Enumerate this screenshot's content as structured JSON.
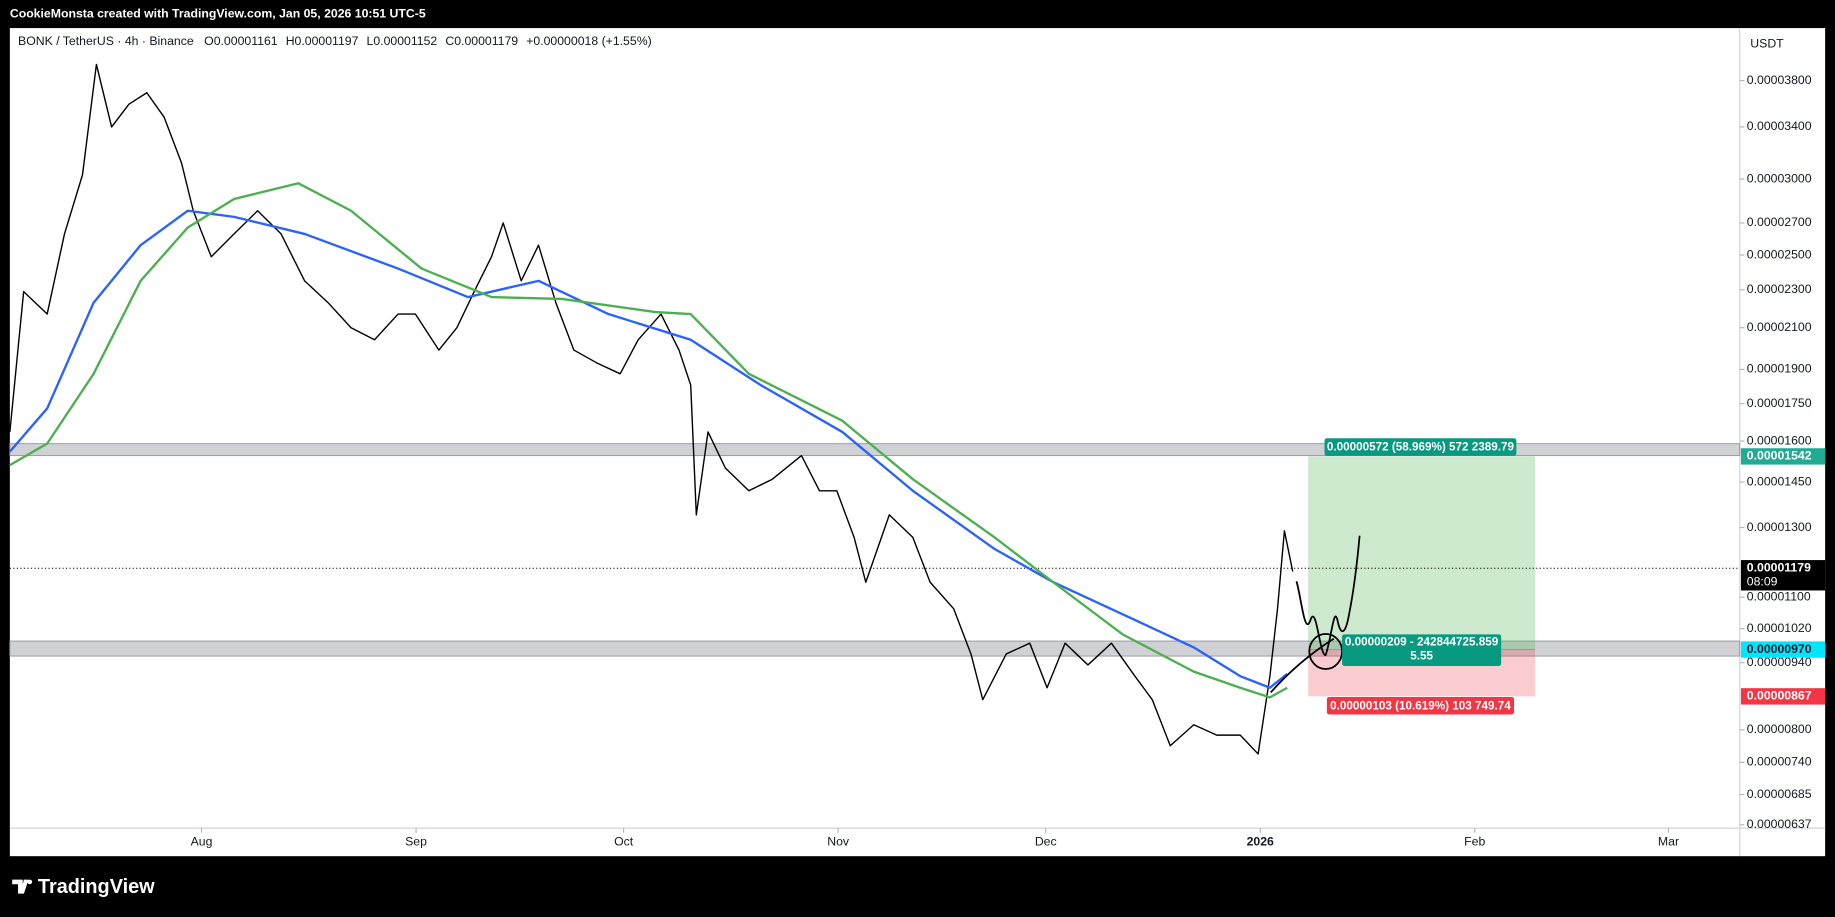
{
  "header": {
    "attribution": "CookieMonsta created with TradingView.com, Jan 05, 2026 10:51 UTC-5"
  },
  "chart_data": {
    "type": "line",
    "title": "BONK / TetherUS · 4h · Binance",
    "ohlc": [
      "O0.00001161",
      "H0.00001197",
      "L0.00001152",
      "C0.00001179",
      "+0.00000018 (+1.55%)"
    ],
    "y_unit": "USDT",
    "log_scale": true,
    "ylim": [
      6.32e-06,
      4.31e-05
    ],
    "yticks": [
      {
        "value": 3.8e-05,
        "label": "0.00003800"
      },
      {
        "value": 3.4e-05,
        "label": "0.00003400"
      },
      {
        "value": 3e-05,
        "label": "0.00003000"
      },
      {
        "value": 2.7e-05,
        "label": "0.00002700"
      },
      {
        "value": 2.5e-05,
        "label": "0.00002500"
      },
      {
        "value": 2.3e-05,
        "label": "0.00002300"
      },
      {
        "value": 2.1e-05,
        "label": "0.00002100"
      },
      {
        "value": 1.9e-05,
        "label": "0.00001900"
      },
      {
        "value": 1.75e-05,
        "label": "0.00001750"
      },
      {
        "value": 1.6e-05,
        "label": "0.00001600"
      },
      {
        "value": 1.45e-05,
        "label": "0.00001450"
      },
      {
        "value": 1.3e-05,
        "label": "0.00001300"
      },
      {
        "value": 1.1e-05,
        "label": "0.00001100"
      },
      {
        "value": 1.02e-05,
        "label": "0.00001020"
      },
      {
        "value": 9.4e-06,
        "label": "0.00000940"
      },
      {
        "value": 8e-06,
        "label": "0.00000800"
      },
      {
        "value": 7.4e-06,
        "label": "0.00000740"
      },
      {
        "value": 6.85e-06,
        "label": "0.00000685"
      },
      {
        "value": 6.37e-06,
        "label": "0.00000637"
      }
    ],
    "xlim": [
      3.3,
      253.3
    ],
    "xticks": [
      {
        "value": 31,
        "label": "Aug"
      },
      {
        "value": 62,
        "label": "Sep"
      },
      {
        "value": 92,
        "label": "Oct"
      },
      {
        "value": 123,
        "label": "Nov"
      },
      {
        "value": 153,
        "label": "Dec"
      },
      {
        "value": 184,
        "label": "2026",
        "bold": true
      },
      {
        "value": 215,
        "label": "Feb"
      },
      {
        "value": 243,
        "label": "Mar"
      }
    ],
    "series": [
      {
        "color": "#000000",
        "width": 1.2,
        "x": [
          3.3,
          5.3,
          8.7,
          11.2,
          13.8,
          15.8,
          18.0,
          20.5,
          23.1,
          25.6,
          28.1,
          29.8,
          32.4,
          35.7,
          39.1,
          42.5,
          45.9,
          49.3,
          52.6,
          56.0,
          59.4,
          61.9,
          65.3,
          67.9,
          70.4,
          72.9,
          74.6,
          77.2,
          79.7,
          82.2,
          84.8,
          88.1,
          91.5,
          94.1,
          97.4,
          100.0,
          101.7,
          102.5,
          104.2,
          106.7,
          110.1,
          113.5,
          117.7,
          120.3,
          122.8,
          125.3,
          127.0,
          130.4,
          133.8,
          136.3,
          139.7,
          142.2,
          143.9,
          147.3,
          150.7,
          153.2,
          155.8,
          159.1,
          162.5,
          165.9,
          168.4,
          171.0,
          174.4,
          177.7,
          181.1,
          183.7,
          185.4,
          186.5,
          187.5,
          188.7
        ],
        "values": [
          1.635e-05,
          2.29e-05,
          2.17e-05,
          2.63e-05,
          3.03e-05,
          3.95e-05,
          3.4e-05,
          3.59e-05,
          3.69e-05,
          3.48e-05,
          3.12e-05,
          2.78e-05,
          2.49e-05,
          2.63e-05,
          2.78e-05,
          2.63e-05,
          2.35e-05,
          2.23e-05,
          2.1e-05,
          2.04e-05,
          2.17e-05,
          2.17e-05,
          1.99e-05,
          2.1e-05,
          2.29e-05,
          2.49e-05,
          2.7e-05,
          2.35e-05,
          2.56e-05,
          2.23e-05,
          1.99e-05,
          1.93e-05,
          1.88e-05,
          2.04e-05,
          2.17e-05,
          1.99e-05,
          1.83e-05,
          1.34e-05,
          1.635e-05,
          1.5e-05,
          1.42e-05,
          1.46e-05,
          1.545e-05,
          1.42e-05,
          1.42e-05,
          1.27e-05,
          1.14e-05,
          1.34e-05,
          1.27e-05,
          1.14e-05,
          1.07e-05,
          9.6e-06,
          8.6e-06,
          9.6e-06,
          9.85e-06,
          8.85e-06,
          9.85e-06,
          9.35e-06,
          9.85e-06,
          9.1e-06,
          8.6e-06,
          7.7e-06,
          8.1e-06,
          7.9e-06,
          7.9e-06,
          7.55e-06,
          9.1e-06,
          1.07e-05,
          1.29e-05,
          1.17e-05
        ]
      },
      {
        "color": "#2962ff",
        "width": 2,
        "x": [
          3.3,
          8.7,
          15.4,
          22.2,
          29.0,
          35.7,
          45.9,
          59.4,
          69.5,
          79.7,
          89.8,
          101.7,
          111.8,
          123.6,
          133.8,
          145.6,
          154.1,
          164.2,
          174.4,
          181.1,
          185.4,
          187.9
        ],
        "values": [
          1.56e-05,
          1.73e-05,
          2.23e-05,
          2.56e-05,
          2.78e-05,
          2.74e-05,
          2.63e-05,
          2.42e-05,
          2.26e-05,
          2.35e-05,
          2.17e-05,
          2.04e-05,
          1.83e-05,
          1.635e-05,
          1.42e-05,
          1.235e-05,
          1.14e-05,
          1.055e-05,
          9.75e-06,
          9.1e-06,
          8.85e-06,
          9.15e-06
        ]
      },
      {
        "color": "#4caf50",
        "width": 2,
        "x": [
          3.3,
          8.7,
          15.4,
          22.2,
          29.0,
          35.7,
          45.0,
          52.6,
          62.8,
          72.9,
          83.1,
          96.6,
          101.7,
          110.1,
          123.6,
          133.8,
          145.6,
          154.1,
          164.2,
          174.4,
          181.1,
          185.4,
          187.9
        ],
        "values": [
          1.51e-05,
          1.59e-05,
          1.88e-05,
          2.35e-05,
          2.67e-05,
          2.86e-05,
          2.97e-05,
          2.78e-05,
          2.42e-05,
          2.26e-05,
          2.25e-05,
          2.18e-05,
          2.17e-05,
          1.88e-05,
          1.68e-05,
          1.46e-05,
          1.27e-05,
          1.14e-05,
          1.005e-05,
          9.2e-06,
          8.85e-06,
          8.65e-06,
          8.85e-06
        ]
      }
    ],
    "zones": [
      [
        1.59e-05,
        1.545e-05
      ],
      [
        9.9e-06,
        9.55e-06
      ]
    ],
    "last": {
      "value": 1.179e-05,
      "label": "0.00001179"
    },
    "countdown": "08:09",
    "position": {
      "target": {
        "value": 1.542e-05,
        "label": "0.00001542"
      },
      "entry": {
        "value": 9.7e-06,
        "label": "0.00000970"
      },
      "stop": {
        "value": 8.67e-06,
        "label": "0.00000867"
      },
      "target_text": "0.00000572 (58.969%) 572 2389.79",
      "entry_text": [
        "0.00000209 - 242844725.859",
        "5.55"
      ],
      "stop_text": "0.00000103 (10.619%) 103 749.74"
    }
  },
  "footer": {
    "logo": "TradingView"
  }
}
